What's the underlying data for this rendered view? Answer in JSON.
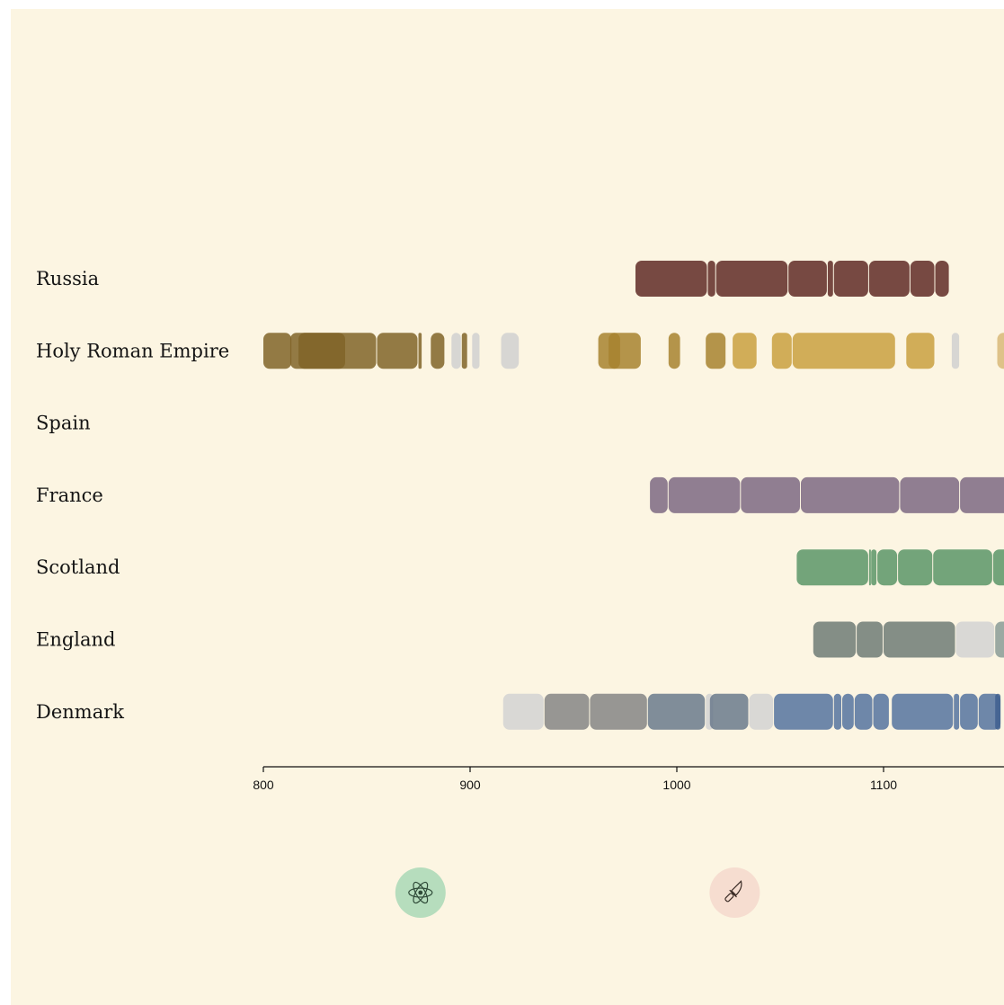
{
  "chart_data": {
    "type": "timeline",
    "xlim": [
      800,
      1200
    ],
    "ticks": [
      800,
      900,
      1000,
      1100
    ],
    "countries": [
      {
        "name": "Russia",
        "reigns": [
          {
            "start": 980,
            "end": 1015,
            "color": "#5f2a26"
          },
          {
            "start": 1015,
            "end": 1019,
            "color": "#5f2a26"
          },
          {
            "start": 1019,
            "end": 1054,
            "color": "#5f2a26"
          },
          {
            "start": 1054,
            "end": 1073,
            "color": "#5f2a26"
          },
          {
            "start": 1073,
            "end": 1076,
            "color": "#5f2a26"
          },
          {
            "start": 1076,
            "end": 1093,
            "color": "#5f2a26"
          },
          {
            "start": 1093,
            "end": 1113,
            "color": "#5f2a26"
          },
          {
            "start": 1113,
            "end": 1125,
            "color": "#5f2a26"
          },
          {
            "start": 1125,
            "end": 1132,
            "color": "#5f2a26"
          }
        ]
      },
      {
        "name": "Holy Roman Empire",
        "reigns": [
          {
            "start": 800,
            "end": 814,
            "color": "#806428"
          },
          {
            "start": 813,
            "end": 840,
            "color": "#806428"
          },
          {
            "start": 817,
            "end": 855,
            "color": "#806428"
          },
          {
            "start": 855,
            "end": 875,
            "color": "#806428"
          },
          {
            "start": 875,
            "end": 877,
            "color": "#806428"
          },
          {
            "start": 881,
            "end": 888,
            "color": "#806428"
          },
          {
            "start": 891,
            "end": 896,
            "color": "#d0d0d0"
          },
          {
            "start": 896,
            "end": 899,
            "color": "#806428"
          },
          {
            "start": 901,
            "end": 905,
            "color": "#d0d0d0"
          },
          {
            "start": 915,
            "end": 924,
            "color": "#d0d0d0"
          },
          {
            "start": 962,
            "end": 973,
            "color": "#a7822f"
          },
          {
            "start": 967,
            "end": 983,
            "color": "#a7822f"
          },
          {
            "start": 996,
            "end": 1002,
            "color": "#a7822f"
          },
          {
            "start": 1014,
            "end": 1024,
            "color": "#a7822f"
          },
          {
            "start": 1027,
            "end": 1039,
            "color": "#c9a040"
          },
          {
            "start": 1046,
            "end": 1056,
            "color": "#c9a040"
          },
          {
            "start": 1056,
            "end": 1106,
            "color": "#c9a040"
          },
          {
            "start": 1111,
            "end": 1125,
            "color": "#c9a040"
          },
          {
            "start": 1133,
            "end": 1137,
            "color": "#d0d0d0"
          },
          {
            "start": 1155,
            "end": 1190,
            "color": "#d8b878"
          }
        ]
      },
      {
        "name": "Spain",
        "reigns": []
      },
      {
        "name": "France",
        "reigns": [
          {
            "start": 987,
            "end": 996,
            "color": "#7d6882"
          },
          {
            "start": 996,
            "end": 1031,
            "color": "#7d6882"
          },
          {
            "start": 1031,
            "end": 1060,
            "color": "#7d6882"
          },
          {
            "start": 1060,
            "end": 1108,
            "color": "#7d6882"
          },
          {
            "start": 1108,
            "end": 1137,
            "color": "#7d6882"
          },
          {
            "start": 1137,
            "end": 1180,
            "color": "#7d6882"
          }
        ]
      },
      {
        "name": "Scotland",
        "reigns": [
          {
            "start": 1058,
            "end": 1093,
            "color": "#5b9567"
          },
          {
            "start": 1093,
            "end": 1094,
            "color": "#5b9567"
          },
          {
            "start": 1094,
            "end": 1097,
            "color": "#5b9567"
          },
          {
            "start": 1097,
            "end": 1107,
            "color": "#5b9567"
          },
          {
            "start": 1107,
            "end": 1124,
            "color": "#5b9567"
          },
          {
            "start": 1124,
            "end": 1153,
            "color": "#5b9567"
          },
          {
            "start": 1153,
            "end": 1165,
            "color": "#5b9567"
          }
        ]
      },
      {
        "name": "England",
        "reigns": [
          {
            "start": 1066,
            "end": 1087,
            "color": "#6e7b76"
          },
          {
            "start": 1087,
            "end": 1100,
            "color": "#6e7b76"
          },
          {
            "start": 1100,
            "end": 1135,
            "color": "#6e7b76"
          },
          {
            "start": 1135,
            "end": 1154,
            "color": "#d2d2d2"
          },
          {
            "start": 1154,
            "end": 1189,
            "color": "#899b97"
          }
        ]
      },
      {
        "name": "Denmark",
        "reigns": [
          {
            "start": 916,
            "end": 936,
            "color": "#d2d2d2"
          },
          {
            "start": 936,
            "end": 958,
            "color": "#858585"
          },
          {
            "start": 958,
            "end": 986,
            "color": "#858585"
          },
          {
            "start": 986,
            "end": 1014,
            "color": "#6a7a8c"
          },
          {
            "start": 1014,
            "end": 1018,
            "color": "#d2d2d2"
          },
          {
            "start": 1016,
            "end": 1035,
            "color": "#6a7a8c"
          },
          {
            "start": 1035,
            "end": 1047,
            "color": "#d2d2d2"
          },
          {
            "start": 1047,
            "end": 1076,
            "color": "#55739f"
          },
          {
            "start": 1076,
            "end": 1080,
            "color": "#55739f"
          },
          {
            "start": 1080,
            "end": 1086,
            "color": "#55739f"
          },
          {
            "start": 1086,
            "end": 1095,
            "color": "#55739f"
          },
          {
            "start": 1095,
            "end": 1103,
            "color": "#55739f"
          },
          {
            "start": 1104,
            "end": 1134,
            "color": "#55739f"
          },
          {
            "start": 1134,
            "end": 1137,
            "color": "#55739f"
          },
          {
            "start": 1137,
            "end": 1146,
            "color": "#55739f"
          },
          {
            "start": 1146,
            "end": 1157,
            "color": "#55739f"
          },
          {
            "start": 1154,
            "end": 1157,
            "color": "#3f5f8f"
          }
        ]
      }
    ]
  },
  "markers": [
    {
      "icon": "atom-icon",
      "year": 876,
      "color": "#b6ddbd"
    },
    {
      "icon": "knife-icon",
      "year": 1028,
      "color": "#f6ddd0"
    }
  ]
}
